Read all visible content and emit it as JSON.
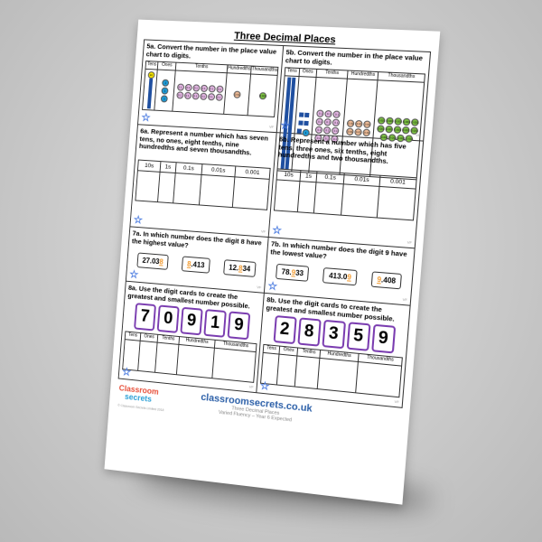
{
  "title": "Three Decimal Places",
  "q5a": {
    "text": "5a. Convert the number in the place value chart to digits.",
    "headers": [
      "Tens",
      "Ones",
      "Tenths",
      "Hundredths",
      "Thousandths"
    ],
    "counters": {
      "tens_10_discs": 1,
      "tens_rods": 1,
      "ones_discs": 3,
      "tenths": 12,
      "hundredths": 1,
      "thousandths": 1
    }
  },
  "q5b": {
    "text": "5b. Convert the number in the place value chart to digits.",
    "headers": [
      "Tens",
      "Ones",
      "Tenths",
      "Hundredths",
      "Thousandths"
    ],
    "counters": {
      "tens_rods": 6,
      "ones_squares": 5,
      "ones_discs": 1,
      "tenths": 12,
      "hundredths": 6,
      "thousandths": 14
    }
  },
  "q6a": {
    "text": "6a. Represent a number which has seven tens, no ones, eight tenths, nine hundredths and seven thousandths.",
    "headers": [
      "10s",
      "1s",
      "0.1s",
      "0.01s",
      "0.001"
    ]
  },
  "q6b": {
    "text": "6b. Represent a number which has five tens, three ones, six tenths, eight hundredths and two thousandths.",
    "headers": [
      "10s",
      "1s",
      "0.1s",
      "0.01s",
      "0.001"
    ]
  },
  "q7a": {
    "text": "7a. In which number does the digit 8 have the highest value?",
    "numbers": [
      [
        "27.03",
        "8",
        ""
      ],
      [
        "",
        "8",
        ".413"
      ],
      [
        "12.",
        "8",
        "34"
      ]
    ]
  },
  "q7b": {
    "text": "7b. In which number does the digit 9 have the lowest value?",
    "numbers": [
      [
        "78.",
        "9",
        "33"
      ],
      [
        "413.0",
        "9",
        ""
      ],
      [
        "",
        "9",
        ".408"
      ]
    ]
  },
  "q8a": {
    "text": "8a. Use the digit cards to create the greatest and smallest number possible.",
    "cards": [
      "7",
      "0",
      "9",
      "1",
      "9"
    ],
    "headers": [
      "Tens",
      "Ones",
      "Tenths",
      "Hundredths",
      "Thousandths"
    ]
  },
  "q8b": {
    "text": "8b. Use the digit cards to create the greatest and smallest number possible.",
    "cards": [
      "2",
      "8",
      "3",
      "5",
      "9"
    ],
    "headers": [
      "Tens",
      "Ones",
      "Tenths",
      "Hundredths",
      "Thousandths"
    ]
  },
  "vf": "VF",
  "footer": {
    "logo_top": "Classroom",
    "logo_bottom": "secrets",
    "copyright": "© Classroom Secrets Limited 2018",
    "site": "classroomsecrets.co.uk",
    "line1": "Three Decimal Places",
    "line2": "Varied Fluency – Year 6 Expected"
  },
  "colors": {
    "counter_10": "#f5e400",
    "counter_1": "#1d9ad6",
    "counter_0_1": "#e6b8e6",
    "counter_0_01": "#f4c09a",
    "counter_0_001": "#7cc242",
    "card_border": "#7a3cb0",
    "highlight": "#f29a2e"
  }
}
